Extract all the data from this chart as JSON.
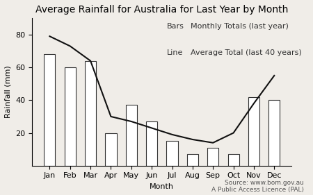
{
  "title": "Average Rainfall for Australia for Last Year by Month",
  "xlabel": "Month",
  "ylabel": "Rainfall (mm)",
  "months": [
    "Jan",
    "Feb",
    "Mar",
    "Apr",
    "May",
    "Jun",
    "Jul",
    "Aug",
    "Sep",
    "Oct",
    "Nov",
    "Dec"
  ],
  "bar_values": [
    68,
    60,
    64,
    20,
    37,
    27,
    15,
    7,
    11,
    7,
    42,
    40
  ],
  "line_values": [
    79,
    73,
    64,
    30,
    27,
    23,
    19,
    16,
    14,
    20,
    38,
    55
  ],
  "ylim": [
    0,
    90
  ],
  "yticks": [
    20,
    40,
    60,
    80
  ],
  "bar_color": "#ffffff",
  "bar_edgecolor": "#333333",
  "line_color": "#111111",
  "background_color": "#f0ede8",
  "legend_line1_key": "Bars",
  "legend_line1_val": "   Monthly Totals (last year)",
  "legend_line2_key": "Line",
  "legend_line2_val": "   Average Total (last 40 years)",
  "source_text": "Source: www.bom.gov.au\nA Public Access Licence (PAL)",
  "title_fontsize": 10,
  "axis_label_fontsize": 8,
  "tick_fontsize": 8,
  "legend_fontsize": 8,
  "source_fontsize": 6.5
}
